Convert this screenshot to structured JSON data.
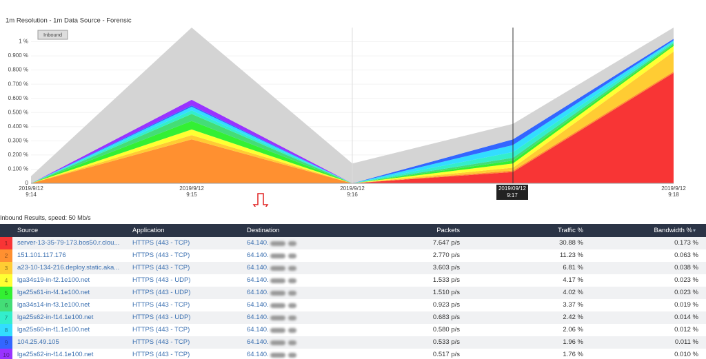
{
  "chart_data": {
    "type": "stacked_area",
    "title": "1m Resolution - 1m Data Source - Forensic",
    "toggle": "Inbound",
    "tooltip": "2019/09/12 9:17",
    "categories": [
      "2019/9/12 9:14",
      "2019/9/12 9:15",
      "2019/9/12 9:16",
      "2019/9/12 9:17",
      "2019/9/12 9:18"
    ],
    "cursor_index": 3,
    "marker_index": 2,
    "ylim": [
      0,
      1.1
    ],
    "yticks": [
      0,
      {
        "value": 0.1,
        "label": "0.100 %"
      },
      {
        "value": 0.2,
        "label": "0.200 %"
      },
      {
        "value": 0.3,
        "label": "0.300 %"
      },
      {
        "value": 0.4,
        "label": "0.400 %"
      },
      {
        "value": 0.5,
        "label": "0.500 %"
      },
      {
        "value": 0.6,
        "label": "0.600 %"
      },
      {
        "value": 0.7,
        "label": "0.700 %"
      },
      {
        "value": 0.8,
        "label": "0.800 %"
      },
      {
        "value": 0.9,
        "label": "0.900 %"
      },
      {
        "value": 1,
        "label": "1 %"
      }
    ],
    "series": [
      {
        "color": "#f83535",
        "values": [
          0,
          0,
          0,
          0.08,
          0.78
        ]
      },
      {
        "color": "#ff9030",
        "values": [
          0,
          0.31,
          0,
          0.01,
          0.01
        ]
      },
      {
        "color": "#ffcc33",
        "values": [
          0,
          0.03,
          0,
          0.02,
          0.14
        ]
      },
      {
        "color": "#ffff33",
        "values": [
          0,
          0.04,
          0,
          0.03,
          0.04
        ]
      },
      {
        "color": "#33f033",
        "values": [
          0,
          0.06,
          0,
          0.02,
          0.01
        ]
      },
      {
        "color": "#44dd77",
        "values": [
          0,
          0.05,
          0,
          0.02,
          0.01
        ]
      },
      {
        "color": "#33eecc",
        "values": [
          0,
          0.025,
          0,
          0.04,
          0.01
        ]
      },
      {
        "color": "#33ddff",
        "values": [
          0,
          0.025,
          0,
          0.05,
          0.01
        ]
      },
      {
        "color": "#3366ff",
        "values": [
          0,
          0.01,
          0,
          0.04,
          0.01
        ]
      },
      {
        "color": "#9933ff",
        "values": [
          0,
          0.04,
          0,
          0,
          0
        ]
      },
      {
        "color": "#d4d4d4",
        "values": [
          0.05,
          0.51,
          0.14,
          0.11,
          0.08
        ]
      }
    ]
  },
  "results_caption": "Inbound Results, speed: 50 Mb/s",
  "table": {
    "columns": [
      "Source",
      "Application",
      "Destination",
      "Packets",
      "Traffic %",
      "Bandwidth %"
    ],
    "rows": [
      [
        "1",
        "server-13-35-79-173.bos50.r.clou...",
        "HTTPS (443 - TCP)",
        "64.140.",
        "7.647 p/s",
        "30.88 %",
        "0.173 %"
      ],
      [
        "2",
        "151.101.117.176",
        "HTTPS (443 - TCP)",
        "64.140.",
        "2.770 p/s",
        "11.23 %",
        "0.063 %"
      ],
      [
        "3",
        "a23-10-134-216.deploy.static.aka...",
        "HTTPS (443 - TCP)",
        "64.140.",
        "3.603 p/s",
        "6.81 %",
        "0.038 %"
      ],
      [
        "4",
        "lga34s19-in-f2.1e100.net",
        "HTTPS (443 - UDP)",
        "64.140.",
        "1.533 p/s",
        "4.17 %",
        "0.023 %"
      ],
      [
        "5",
        "lga25s61-in-f4.1e100.net",
        "HTTPS (443 - UDP)",
        "64.140.",
        "1.510 p/s",
        "4.02 %",
        "0.023 %"
      ],
      [
        "6",
        "lga34s14-in-f3.1e100.net",
        "HTTPS (443 - TCP)",
        "64.140.",
        "0.923 p/s",
        "3.37 %",
        "0.019 %"
      ],
      [
        "7",
        "lga25s62-in-f14.1e100.net",
        "HTTPS (443 - UDP)",
        "64.140.",
        "0.683 p/s",
        "2.42 %",
        "0.014 %"
      ],
      [
        "8",
        "lga25s60-in-f1.1e100.net",
        "HTTPS (443 - TCP)",
        "64.140.",
        "0.580 p/s",
        "2.06 %",
        "0.012 %"
      ],
      [
        "9",
        "104.25.49.105",
        "HTTPS (443 - TCP)",
        "64.140.",
        "0.533 p/s",
        "1.96 %",
        "0.011 %"
      ],
      [
        "10",
        "lga25s62-in-f14.1e100.net",
        "HTTPS (443 - TCP)",
        "64.140.",
        "0.517 p/s",
        "1.76 %",
        "0.010 %"
      ]
    ]
  }
}
